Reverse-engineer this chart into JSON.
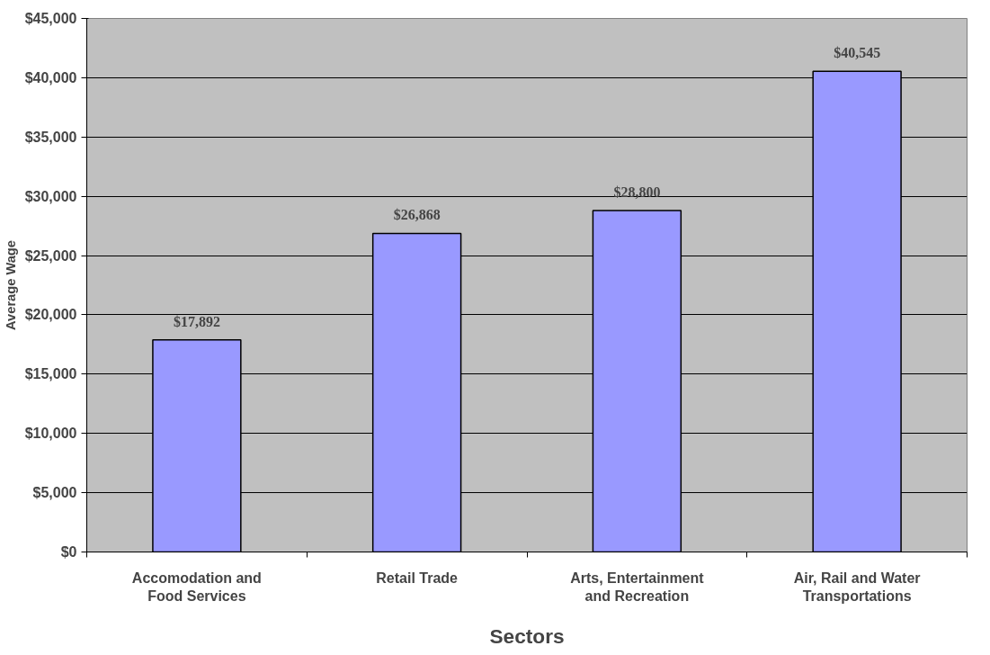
{
  "chart_data": {
    "type": "bar",
    "xlabel": "Sectors",
    "ylabel": "Average Wage",
    "categories": [
      "Accomodation and Food Services",
      "Retail Trade",
      "Arts, Entertainment and Recreation",
      "Air, Rail and Water Transportations"
    ],
    "values": [
      17892,
      26868,
      28800,
      40545
    ],
    "value_labels": [
      "$17,892",
      "$26,868",
      "$28,800",
      "$40,545"
    ],
    "color": "#9999ff",
    "ylim": [
      0,
      45000
    ],
    "yticks": [
      {
        "value": 0,
        "label": "$0"
      },
      {
        "value": 5000,
        "label": "$5,000"
      },
      {
        "value": 10000,
        "label": "$10,000"
      },
      {
        "value": 15000,
        "label": "$15,000"
      },
      {
        "value": 20000,
        "label": "$20,000"
      },
      {
        "value": 25000,
        "label": "$25,000"
      },
      {
        "value": 30000,
        "label": "$30,000"
      },
      {
        "value": 35000,
        "label": "$35,000"
      },
      {
        "value": 40000,
        "label": "$40,000"
      },
      {
        "value": 45000,
        "label": "$45,000"
      }
    ],
    "grid": "y"
  }
}
